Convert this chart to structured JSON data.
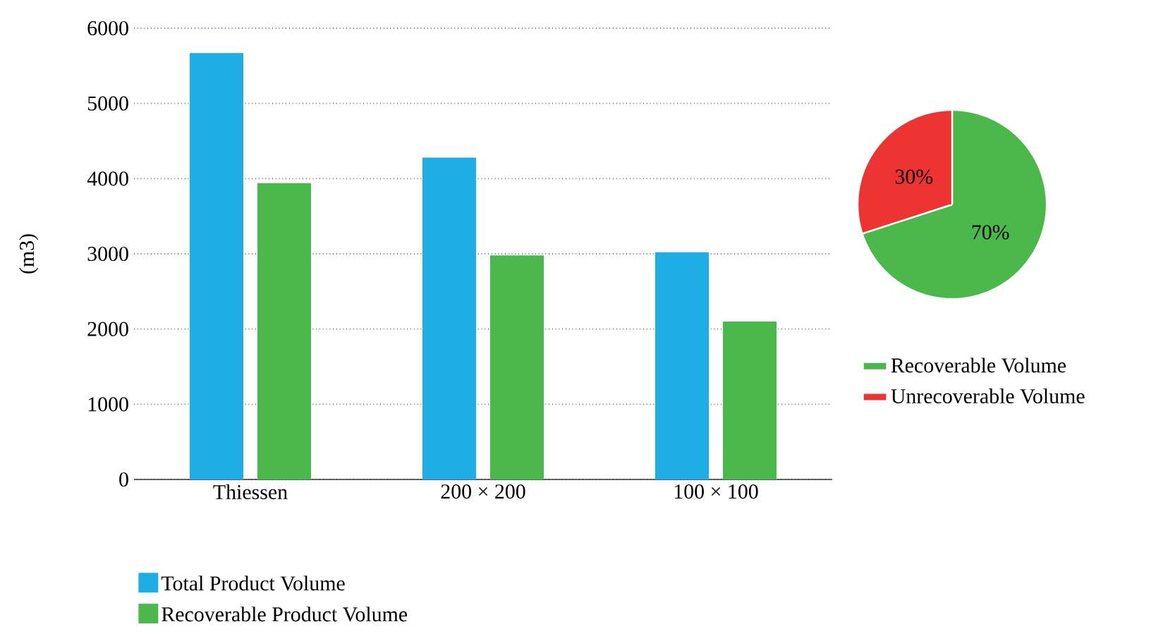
{
  "chart_data": [
    {
      "type": "bar",
      "ylabel": "(m3)",
      "categories": [
        "Thiessen",
        "200 × 200",
        "100 × 100"
      ],
      "series": [
        {
          "name": "Total Product Volume",
          "color": "#1eaee5",
          "values": [
            5670,
            4280,
            3020
          ]
        },
        {
          "name": "Recoverable Product Volume",
          "color": "#4ab84a",
          "values": [
            3940,
            2980,
            2100
          ]
        }
      ],
      "ylim": [
        0,
        6000
      ],
      "yticks": [
        0,
        1000,
        2000,
        3000,
        4000,
        5000,
        6000
      ],
      "grid": "y",
      "legend": "bottom"
    },
    {
      "type": "pie",
      "categories": [
        "Recoverable Volume",
        "Unrecoverable Volume"
      ],
      "values": [
        70,
        30
      ],
      "colors": [
        "#4ab84a",
        "#ee3333"
      ],
      "value_labels": [
        "70%",
        "30%"
      ],
      "legend": "bottom"
    }
  ]
}
